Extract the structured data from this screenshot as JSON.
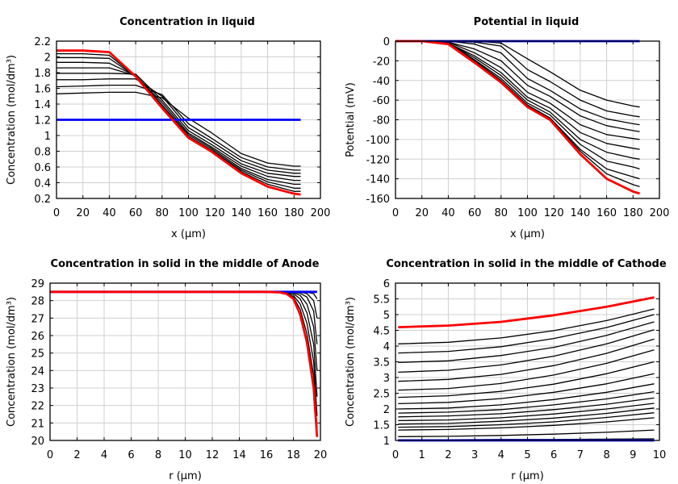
{
  "chart_data": [
    {
      "type": "line",
      "title": "Concentration in liquid",
      "xlabel": "x (µm)",
      "ylabel": "Concentration (mol/dm³)",
      "xlim": [
        0,
        200
      ],
      "ylim": [
        0.2,
        2.2
      ],
      "grid": true,
      "xticks": [
        "0",
        "20",
        "40",
        "60",
        "80",
        "100",
        "120",
        "140",
        "160",
        "180",
        "200"
      ],
      "yticks": [
        "0.2",
        "0.4",
        "0.6",
        "0.8",
        "1",
        "1.2",
        "1.4",
        "1.6",
        "1.8",
        "2",
        "2.2"
      ],
      "x": [
        0,
        20,
        40,
        60,
        80,
        100,
        117,
        140,
        160,
        180,
        185
      ],
      "series": [
        {
          "color": "#000000",
          "values": [
            1.53,
            1.54,
            1.55,
            1.55,
            1.48,
            1.22,
            1.04,
            0.77,
            0.65,
            0.61,
            0.61
          ]
        },
        {
          "color": "#000000",
          "values": [
            1.62,
            1.63,
            1.64,
            1.64,
            1.52,
            1.15,
            0.97,
            0.72,
            0.6,
            0.56,
            0.56
          ]
        },
        {
          "color": "#000000",
          "values": [
            1.71,
            1.71,
            1.72,
            1.72,
            1.5,
            1.1,
            0.93,
            0.68,
            0.56,
            0.52,
            0.52
          ]
        },
        {
          "color": "#000000",
          "values": [
            1.79,
            1.79,
            1.79,
            1.78,
            1.45,
            1.06,
            0.89,
            0.64,
            0.52,
            0.48,
            0.48
          ]
        },
        {
          "color": "#000000",
          "values": [
            1.86,
            1.86,
            1.86,
            1.76,
            1.42,
            1.03,
            0.86,
            0.61,
            0.48,
            0.43,
            0.43
          ]
        },
        {
          "color": "#000000",
          "values": [
            1.93,
            1.93,
            1.92,
            1.76,
            1.39,
            1.01,
            0.84,
            0.58,
            0.44,
            0.38,
            0.38
          ]
        },
        {
          "color": "#000000",
          "values": [
            1.99,
            1.99,
            1.98,
            1.75,
            1.37,
            0.99,
            0.82,
            0.56,
            0.41,
            0.33,
            0.33
          ]
        },
        {
          "color": "#000000",
          "values": [
            2.04,
            2.04,
            2.02,
            1.75,
            1.36,
            0.98,
            0.81,
            0.54,
            0.38,
            0.29,
            0.29
          ]
        },
        {
          "color": "#0000ff",
          "values": [
            1.2,
            1.2,
            1.2,
            1.2,
            1.2,
            1.2,
            1.2,
            1.2,
            1.2,
            1.2,
            1.2
          ]
        },
        {
          "color": "#ff0000",
          "values": [
            2.08,
            2.08,
            2.06,
            1.75,
            1.35,
            0.97,
            0.8,
            0.52,
            0.35,
            0.26,
            0.25
          ]
        }
      ]
    },
    {
      "type": "line",
      "title": "Potential in liquid",
      "xlabel": "x (µm)",
      "ylabel": "Potential (mV)",
      "xlim": [
        0,
        200
      ],
      "ylim": [
        -160,
        0
      ],
      "grid": true,
      "xticks": [
        "0",
        "20",
        "40",
        "60",
        "80",
        "100",
        "120",
        "140",
        "160",
        "180",
        "200"
      ],
      "yticks": [
        "-160",
        "-140",
        "-120",
        "-100",
        "-80",
        "-60",
        "-40",
        "-20",
        "0"
      ],
      "x": [
        0,
        20,
        40,
        60,
        80,
        100,
        117,
        140,
        160,
        180,
        185
      ],
      "series": [
        {
          "color": "#000000",
          "values": [
            0,
            0,
            0,
            0,
            -2,
            -18,
            -31,
            -50,
            -60,
            -66,
            -67
          ]
        },
        {
          "color": "#000000",
          "values": [
            0,
            0,
            0,
            -1,
            -5,
            -29,
            -41,
            -60,
            -71,
            -76,
            -77
          ]
        },
        {
          "color": "#000000",
          "values": [
            0,
            0,
            0,
            -3,
            -12,
            -38,
            -50,
            -69,
            -79,
            -84,
            -85
          ]
        },
        {
          "color": "#000000",
          "values": [
            0,
            0,
            -1,
            -8,
            -20,
            -45,
            -56,
            -76,
            -86,
            -91,
            -92
          ]
        },
        {
          "color": "#000000",
          "values": [
            0,
            0,
            -1,
            -12,
            -27,
            -52,
            -63,
            -85,
            -95,
            -99,
            -100
          ]
        },
        {
          "color": "#000000",
          "values": [
            0,
            0,
            -2,
            -15,
            -32,
            -57,
            -68,
            -93,
            -104,
            -109,
            -110
          ]
        },
        {
          "color": "#000000",
          "values": [
            0,
            0,
            -2,
            -17,
            -35,
            -60,
            -72,
            -100,
            -113,
            -119,
            -120
          ]
        },
        {
          "color": "#000000",
          "values": [
            0,
            0,
            -2,
            -19,
            -38,
            -63,
            -75,
            -105,
            -122,
            -128,
            -130
          ]
        },
        {
          "color": "#000000",
          "values": [
            0,
            0,
            -3,
            -20,
            -40,
            -65,
            -78,
            -110,
            -130,
            -138,
            -140
          ]
        },
        {
          "color": "#000000",
          "values": [
            0,
            0,
            -3,
            -21,
            -41,
            -66,
            -79,
            -112,
            -135,
            -146,
            -148
          ]
        },
        {
          "color": "#0000ff",
          "values": [
            0,
            0,
            0,
            0,
            0,
            0,
            0,
            0,
            0,
            0,
            0
          ]
        },
        {
          "color": "#ff0000",
          "values": [
            0,
            0,
            -3,
            -22,
            -42,
            -67,
            -80,
            -115,
            -140,
            -153,
            -155
          ]
        }
      ]
    },
    {
      "type": "line",
      "title": "Concentration in solid in the middle of Anode",
      "xlabel": "r (µm)",
      "ylabel": "Concentration (mol/dm³)",
      "xlim": [
        0,
        20
      ],
      "ylim": [
        20,
        29
      ],
      "grid": true,
      "xticks": [
        "0",
        "2",
        "4",
        "6",
        "8",
        "10",
        "12",
        "14",
        "16",
        "18",
        "20"
      ],
      "yticks": [
        "20",
        "21",
        "22",
        "23",
        "24",
        "25",
        "26",
        "27",
        "28",
        "29"
      ],
      "x": [
        0,
        16,
        17,
        17.5,
        18,
        18.5,
        19,
        19.5,
        19.75
      ],
      "series": [
        {
          "color": "#000000",
          "values": [
            28.5,
            28.5,
            28.5,
            28.5,
            28.5,
            28.5,
            28.48,
            28.4,
            28.1
          ]
        },
        {
          "color": "#000000",
          "values": [
            28.5,
            28.5,
            28.5,
            28.5,
            28.5,
            28.49,
            28.4,
            28.0,
            27.0
          ]
        },
        {
          "color": "#000000",
          "values": [
            28.5,
            28.5,
            28.5,
            28.5,
            28.49,
            28.42,
            28.2,
            27.4,
            25.5
          ]
        },
        {
          "color": "#000000",
          "values": [
            28.5,
            28.5,
            28.5,
            28.5,
            28.45,
            28.3,
            27.8,
            26.5,
            24.0
          ]
        },
        {
          "color": "#000000",
          "values": [
            28.5,
            28.5,
            28.5,
            28.48,
            28.4,
            28.1,
            27.3,
            25.5,
            22.5
          ]
        },
        {
          "color": "#000000",
          "values": [
            28.5,
            28.5,
            28.5,
            28.45,
            28.3,
            27.8,
            26.7,
            24.5,
            21.4
          ]
        },
        {
          "color": "#000000",
          "values": [
            28.5,
            28.5,
            28.49,
            28.42,
            28.2,
            27.5,
            26.1,
            23.7,
            20.7
          ]
        },
        {
          "color": "#0000ff",
          "values": [
            28.5,
            28.5,
            28.5,
            28.5,
            28.5,
            28.5,
            28.5,
            28.5,
            28.5
          ]
        },
        {
          "color": "#ff0000",
          "values": [
            28.5,
            28.5,
            28.47,
            28.38,
            28.1,
            27.2,
            25.6,
            23.0,
            20.2
          ]
        }
      ]
    },
    {
      "type": "line",
      "title": "Concentration in solid in the middle of Cathode",
      "xlabel": "r (µm)",
      "ylabel": "Concentration (mol/dm³)",
      "xlim": [
        0,
        10
      ],
      "ylim": [
        1,
        6
      ],
      "grid": true,
      "xticks": [
        "0",
        "1",
        "2",
        "3",
        "4",
        "5",
        "6",
        "7",
        "8",
        "9",
        "10"
      ],
      "yticks": [
        "1",
        "1.5",
        "2",
        "2.5",
        "3",
        "3.5",
        "4",
        "4.5",
        "5",
        "5.5",
        "6"
      ],
      "x": [
        0.1,
        2,
        4,
        6,
        8,
        9.8
      ],
      "series": [
        {
          "color": "#000000",
          "values": [
            4.07,
            4.12,
            4.26,
            4.49,
            4.81,
            5.18
          ]
        },
        {
          "color": "#000000",
          "values": [
            3.78,
            3.83,
            3.98,
            4.24,
            4.59,
            5.0
          ]
        },
        {
          "color": "#000000",
          "values": [
            3.48,
            3.53,
            3.7,
            3.96,
            4.34,
            4.77
          ]
        },
        {
          "color": "#000000",
          "values": [
            3.17,
            3.23,
            3.4,
            3.68,
            4.07,
            4.52
          ]
        },
        {
          "color": "#000000",
          "values": [
            2.88,
            2.94,
            3.1,
            3.38,
            3.77,
            4.22
          ]
        },
        {
          "color": "#000000",
          "values": [
            2.6,
            2.65,
            2.81,
            3.08,
            3.45,
            3.88
          ]
        },
        {
          "color": "#000000",
          "values": [
            2.37,
            2.42,
            2.56,
            2.79,
            3.12,
            3.5
          ]
        },
        {
          "color": "#000000",
          "values": [
            2.17,
            2.21,
            2.33,
            2.53,
            2.8,
            3.12
          ]
        },
        {
          "color": "#000000",
          "values": [
            2.0,
            2.03,
            2.13,
            2.3,
            2.53,
            2.8
          ]
        },
        {
          "color": "#000000",
          "values": [
            1.87,
            1.9,
            1.98,
            2.13,
            2.32,
            2.55
          ]
        },
        {
          "color": "#000000",
          "values": [
            1.75,
            1.78,
            1.85,
            1.98,
            2.15,
            2.35
          ]
        },
        {
          "color": "#000000",
          "values": [
            1.63,
            1.65,
            1.72,
            1.84,
            2.0,
            2.18
          ]
        },
        {
          "color": "#000000",
          "values": [
            1.52,
            1.54,
            1.61,
            1.71,
            1.86,
            2.03
          ]
        },
        {
          "color": "#000000",
          "values": [
            1.42,
            1.44,
            1.5,
            1.59,
            1.73,
            1.88
          ]
        },
        {
          "color": "#000000",
          "values": [
            1.33,
            1.35,
            1.4,
            1.48,
            1.59,
            1.72
          ]
        },
        {
          "color": "#000000",
          "values": [
            1.12,
            1.13,
            1.16,
            1.2,
            1.26,
            1.33
          ]
        },
        {
          "color": "#000000",
          "values": [
            1.02,
            1.02,
            1.03,
            1.03,
            1.04,
            1.05
          ]
        },
        {
          "color": "#0000ff",
          "values": [
            1.0,
            1.0,
            1.0,
            1.0,
            1.0,
            1.0
          ]
        },
        {
          "color": "#ff0000",
          "values": [
            4.6,
            4.65,
            4.77,
            4.98,
            5.25,
            5.55
          ]
        }
      ]
    }
  ]
}
